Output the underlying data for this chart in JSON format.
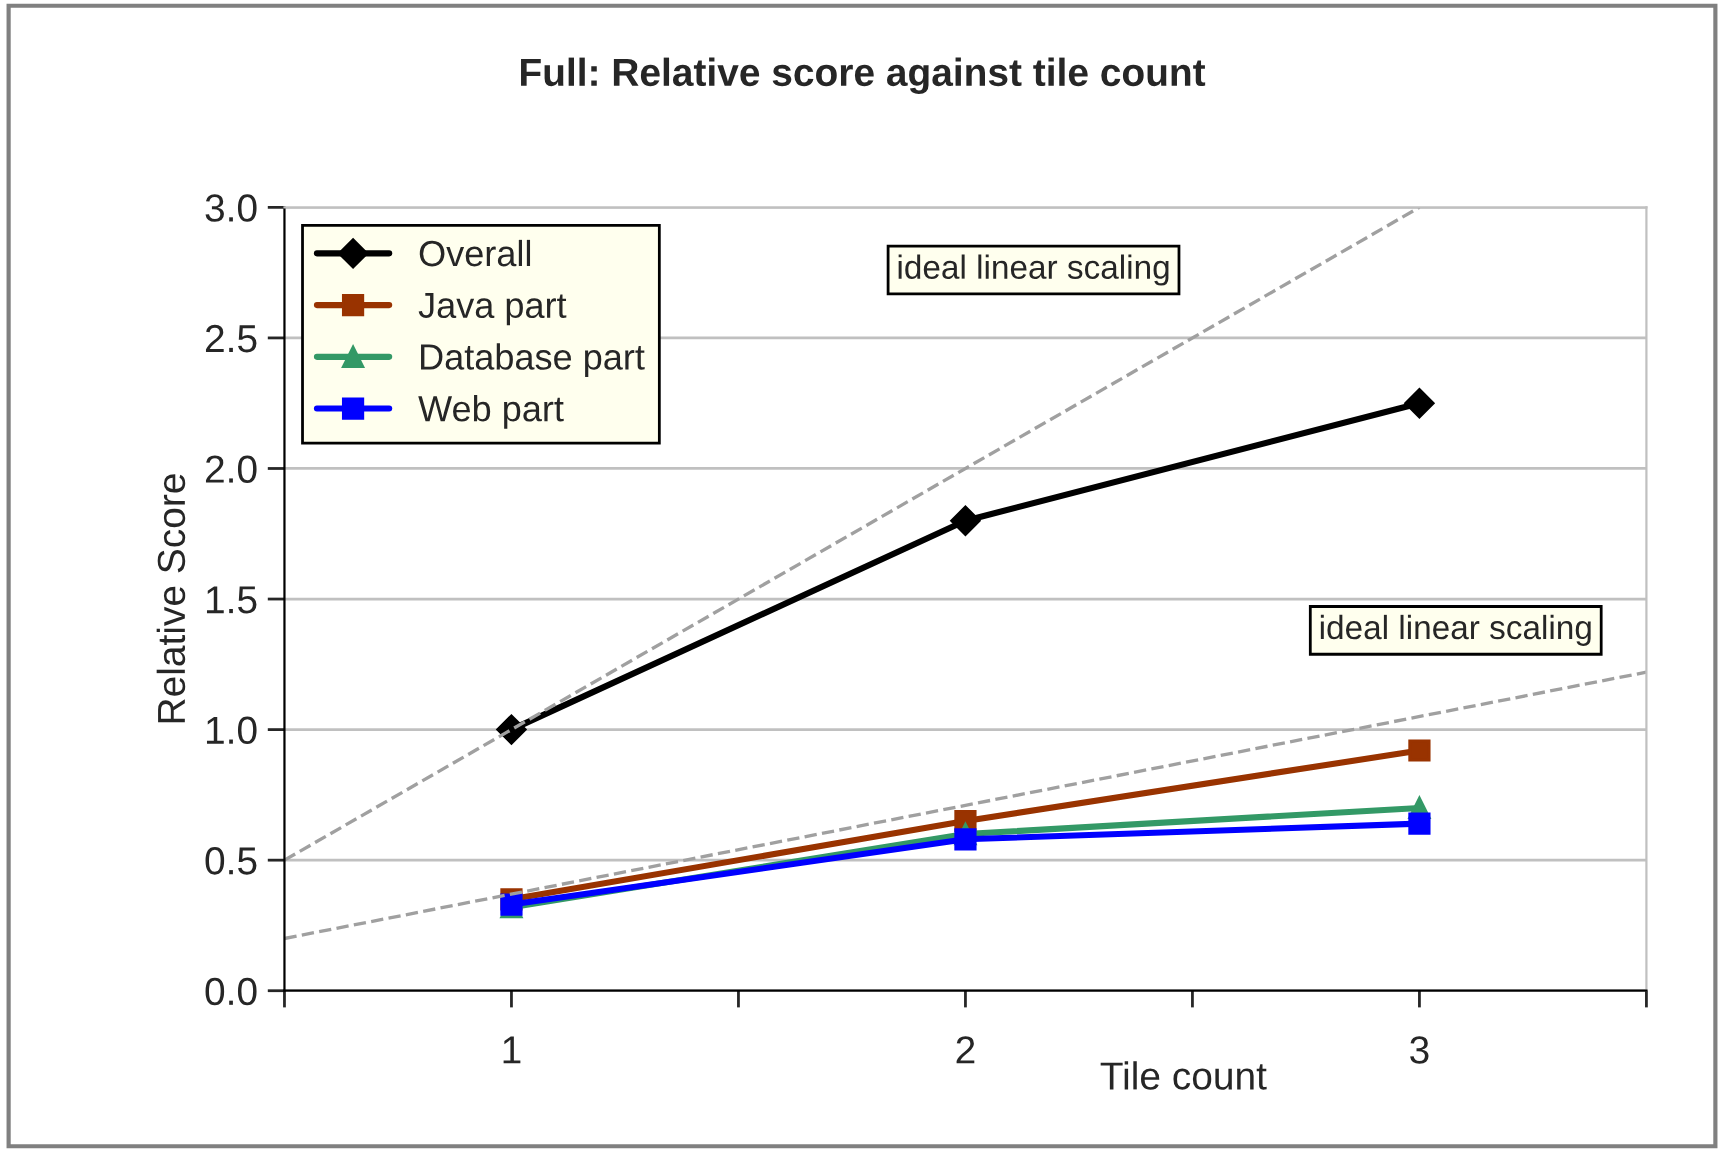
{
  "chart_data": {
    "type": "line",
    "title": "Full: Relative score against tile count",
    "xlabel": "Tile count",
    "ylabel": "Relative Score",
    "x": [
      1,
      2,
      3
    ],
    "xlim": [
      0.5,
      3.5
    ],
    "xticks": [
      {
        "value": 0.5,
        "label": null
      },
      {
        "value": 1,
        "label": "1"
      },
      {
        "value": 1.5,
        "label": null
      },
      {
        "value": 2,
        "label": "2"
      },
      {
        "value": 2.5,
        "label": null
      },
      {
        "value": 3,
        "label": "3"
      },
      {
        "value": 3.5,
        "label": null
      }
    ],
    "ylim": [
      0,
      3
    ],
    "yticks": [
      {
        "value": 0,
        "label": "0.0"
      },
      {
        "value": 0.5,
        "label": "0.5"
      },
      {
        "value": 1,
        "label": "1.0"
      },
      {
        "value": 1.5,
        "label": "1.5"
      },
      {
        "value": 2,
        "label": "2.0"
      },
      {
        "value": 2.5,
        "label": "2.5"
      },
      {
        "value": 3,
        "label": "3.0"
      }
    ],
    "grid": "y",
    "legend": "top left",
    "line_style": "solid",
    "series": [
      {
        "name": "Overall",
        "color": "#000000",
        "marker": "diamond",
        "values": [
          1.0,
          1.8,
          2.25
        ]
      },
      {
        "name": "Java part",
        "color": "#993300",
        "marker": "square",
        "values": [
          0.35,
          0.65,
          0.92
        ]
      },
      {
        "name": "Database part",
        "color": "#339966",
        "marker": "triangle",
        "values": [
          0.32,
          0.6,
          0.7
        ]
      },
      {
        "name": "Web part",
        "color": "#0000ff",
        "marker": "square",
        "values": [
          0.33,
          0.58,
          0.64
        ]
      },
      {
        "color": "#a0a0a0",
        "marker": "none",
        "line_style": "dashed",
        "x": [
          0.5,
          3.0
        ],
        "values": [
          0.5,
          3.0
        ]
      },
      {
        "color": "#a0a0a0",
        "marker": "none",
        "line_style": "dashed",
        "x": [
          0.5,
          3.5
        ],
        "values": [
          0.2,
          1.22
        ]
      }
    ],
    "annotations": [
      "ideal linear scaling",
      "ideal linear scaling"
    ]
  }
}
